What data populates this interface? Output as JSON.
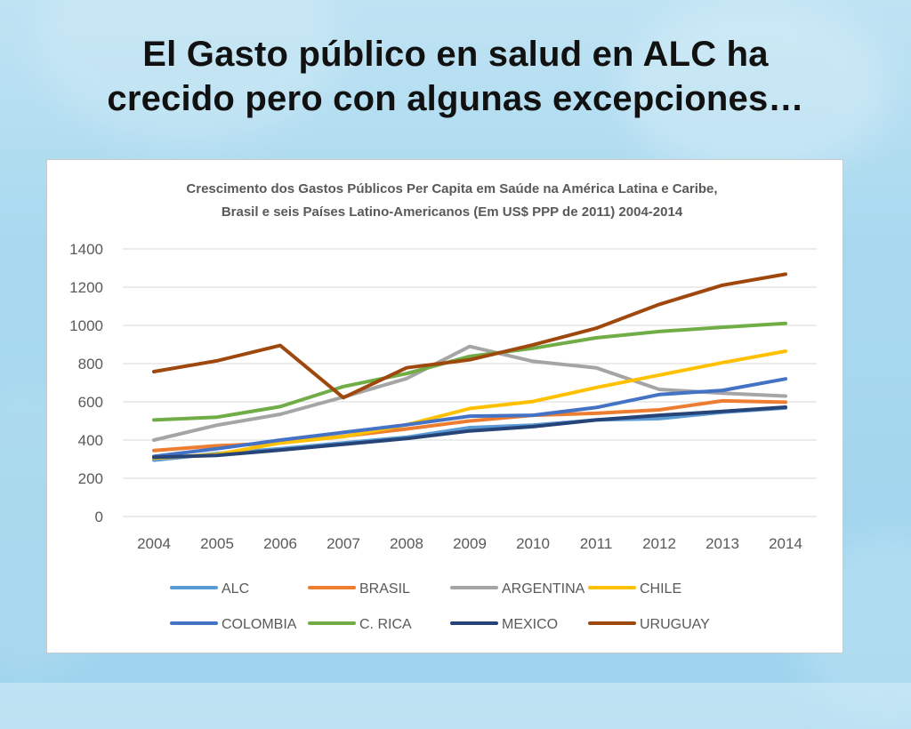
{
  "slide": {
    "title_line1": "El Gasto público en salud en ALC ha",
    "title_line2": "crecido pero con algunas excepciones…"
  },
  "chart_data": {
    "type": "line",
    "title": "Crescimento dos Gastos Públicos Per Capita em Saúde na América Latina e Caribe,",
    "subtitle": "Brasil e seis Países Latino-Americanos (Em US$ PPP de 2011) 2004-2014",
    "xlabel": "",
    "ylabel": "",
    "ylim": [
      0,
      1400
    ],
    "yticks": [
      0,
      200,
      400,
      600,
      800,
      1000,
      1200,
      1400
    ],
    "grid": true,
    "legend_position": "bottom",
    "categories": [
      "2004",
      "2005",
      "2006",
      "2007",
      "2008",
      "2009",
      "2010",
      "2011",
      "2012",
      "2013",
      "2014"
    ],
    "series": [
      {
        "name": "ALC",
        "color": "#5B9BD5",
        "values": [
          295,
          330,
          355,
          385,
          415,
          465,
          478,
          505,
          512,
          545,
          568
        ]
      },
      {
        "name": "BRASIL",
        "color": "#ED7D31",
        "values": [
          345,
          370,
          385,
          420,
          458,
          500,
          530,
          540,
          558,
          605,
          598
        ]
      },
      {
        "name": "ARGENTINA",
        "color": "#A5A5A5",
        "values": [
          400,
          478,
          535,
          625,
          722,
          890,
          812,
          778,
          665,
          645,
          630
        ]
      },
      {
        "name": "CHILE",
        "color": "#FFC000",
        "values": [
          305,
          325,
          385,
          418,
          480,
          565,
          602,
          675,
          740,
          805,
          865
        ]
      },
      {
        "name": "COLOMBIA",
        "color": "#4472C4",
        "values": [
          315,
          355,
          400,
          440,
          480,
          525,
          530,
          570,
          638,
          660,
          720
        ]
      },
      {
        "name": "C. RICA",
        "color": "#70AD47",
        "values": [
          505,
          520,
          575,
          680,
          748,
          838,
          880,
          935,
          968,
          990,
          1010
        ]
      },
      {
        "name": "MEXICO",
        "color": "#264478",
        "values": [
          310,
          320,
          348,
          378,
          408,
          448,
          470,
          505,
          530,
          550,
          572
        ]
      },
      {
        "name": "URUGUAY",
        "color": "#9E480E",
        "values": [
          758,
          815,
          895,
          622,
          778,
          820,
          898,
          985,
          1110,
          1210,
          1268
        ]
      }
    ]
  }
}
